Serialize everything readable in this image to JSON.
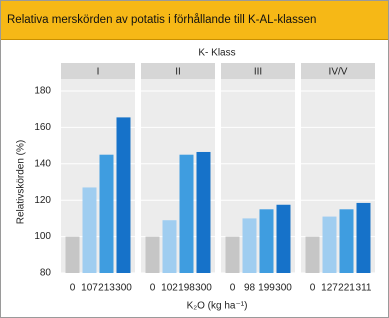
{
  "header": {
    "title": "Relativa merskörden av potatis i förhållande till K-AL-klassen"
  },
  "chart_data": {
    "type": "bar",
    "title": "K- Klass",
    "ylabel": "Relativskörden (%)",
    "xlabel": "K₂O (kg ha⁻¹)",
    "ylim": [
      80,
      180
    ],
    "yticks": [
      80,
      100,
      120,
      140,
      160,
      180
    ],
    "colors": [
      "#c6c6c6",
      "#9fcdf0",
      "#3f9de0",
      "#1672c9"
    ],
    "panels": [
      {
        "label": "I",
        "categories": [
          "0",
          "107",
          "213",
          "300"
        ],
        "values": [
          100,
          127,
          145,
          165.5
        ]
      },
      {
        "label": "II",
        "categories": [
          "0",
          "102",
          "198",
          "300"
        ],
        "values": [
          100,
          109,
          145,
          146.5
        ]
      },
      {
        "label": "III",
        "categories": [
          "0",
          "98",
          "199",
          "300"
        ],
        "values": [
          100,
          110,
          115,
          117.5
        ]
      },
      {
        "label": "IV/V",
        "categories": [
          "0",
          "127",
          "221",
          "311"
        ],
        "values": [
          100,
          111,
          115,
          118.5
        ]
      }
    ]
  }
}
